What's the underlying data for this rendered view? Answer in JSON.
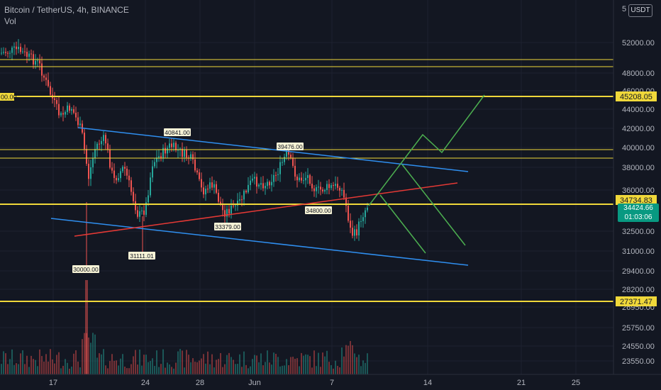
{
  "header": {
    "symbol_line": "Bitcoin / TetherUS, 4h, BINANCE",
    "indicator": "Vol",
    "currency_button": "USDT",
    "top_tick_fragment": "5"
  },
  "price_axis": {
    "ticks": [
      "52000.00",
      "48000.00",
      "46000.00",
      "44000.00",
      "42000.00",
      "40000.00",
      "38000.00",
      "36000.00",
      "32500.00",
      "31000.00",
      "29400.00",
      "28200.00",
      "26950.00",
      "25750.00",
      "24550.00",
      "23550.00"
    ]
  },
  "time_axis": {
    "ticks": [
      "17",
      "24",
      "28",
      "Jun",
      "7",
      "14",
      "21",
      "25"
    ]
  },
  "price_labels": {
    "hline_1": "45208.05",
    "hline_2": "34734.83",
    "hline_3": "27371.47",
    "current_price": "34424.66",
    "countdown": "01:03:06",
    "left_cut": "00.00"
  },
  "annotations": [
    "40841.00",
    "39476.00",
    "34800.00",
    "33379.00",
    "31111.01",
    "30000.00"
  ],
  "colors": {
    "background": "#131722",
    "up": "#26a69a",
    "down": "#ef5350",
    "level_line": "#f0d83a",
    "trend_blue": "#2f8ff0",
    "trend_red": "#e53935",
    "projection_green": "#4caf50",
    "current_label": "#089981"
  },
  "chart_data": {
    "type": "candlestick",
    "title": "Bitcoin / TetherUS, 4h, BINANCE",
    "ylim": [
      22800,
      54000
    ],
    "horizontal_levels": [
      49400,
      48700,
      45208.05,
      39700,
      38800,
      34734.83,
      27371.47
    ],
    "labeled_points": [
      40841,
      39476,
      34800,
      33379,
      31111.01,
      30000
    ],
    "current_price": 34424.66
  }
}
